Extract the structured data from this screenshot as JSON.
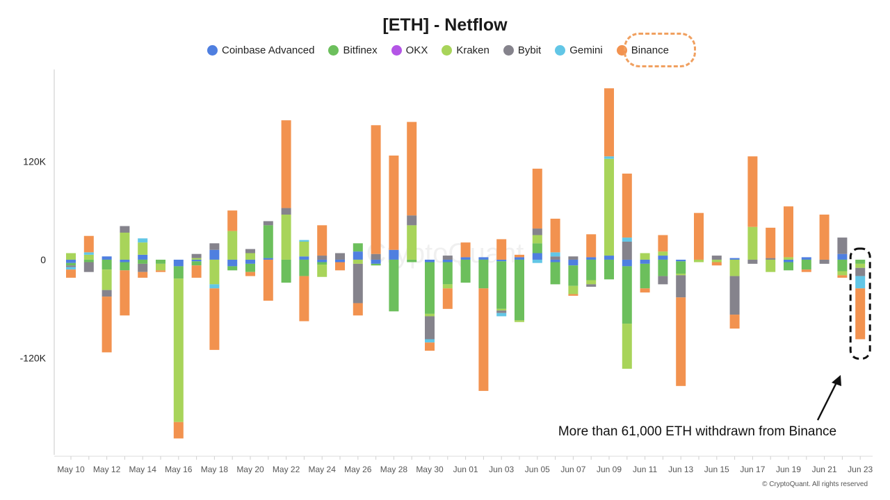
{
  "chart_data": {
    "type": "stacked-bar",
    "title": "[ETH] - Netflow",
    "xlabel": "",
    "ylabel": "",
    "ylim": [
      -238000,
      232000
    ],
    "yticks": [
      {
        "value": 120000,
        "label": "120K"
      },
      {
        "value": 0,
        "label": "0"
      },
      {
        "value": -120000,
        "label": "-120K"
      }
    ],
    "categories": [
      "May 10",
      "May 11",
      "May 12",
      "May 13",
      "May 14",
      "May 15",
      "May 16",
      "May 17",
      "May 18",
      "May 19",
      "May 20",
      "May 21",
      "May 22",
      "May 23",
      "May 24",
      "May 25",
      "May 26",
      "May 27",
      "May 28",
      "May 29",
      "May 30",
      "May 31",
      "Jun 01",
      "Jun 02",
      "Jun 03",
      "Jun 04",
      "Jun 05",
      "Jun 06",
      "Jun 07",
      "Jun 08",
      "Jun 09",
      "Jun 10",
      "Jun 11",
      "Jun 12",
      "Jun 13",
      "Jun 14",
      "Jun 15",
      "Jun 16",
      "Jun 17",
      "Jun 18",
      "Jun 19",
      "Jun 20",
      "Jun 21",
      "Jun 22",
      "Jun 23"
    ],
    "xtick_labels": [
      "May 10",
      "May 12",
      "May 14",
      "May 16",
      "May 18",
      "May 20",
      "May 22",
      "May 24",
      "May 26",
      "May 28",
      "May 30",
      "Jun 01",
      "Jun 03",
      "Jun 05",
      "Jun 07",
      "Jun 09",
      "Jun 11",
      "Jun 13",
      "Jun 15",
      "Jun 17",
      "Jun 19",
      "Jun 21",
      "Jun 23"
    ],
    "series": [
      {
        "name": "Coinbase Advanced",
        "color": "#4f7fe0",
        "values": [
          -4000,
          0,
          4000,
          -3000,
          6000,
          0,
          -8000,
          -2000,
          12000,
          -8000,
          -5000,
          2000,
          0,
          4000,
          -3000,
          -3000,
          10000,
          -5000,
          12000,
          0,
          -3000,
          -3000,
          3000,
          3000,
          -2000,
          3000,
          8000,
          -3000,
          -7000,
          3000,
          5000,
          -8000,
          -5000,
          5000,
          -2000,
          0,
          0,
          2000,
          0,
          0,
          -3000,
          3000,
          0,
          7000,
          0
        ]
      },
      {
        "name": "Bitfinex",
        "color": "#6cbf5c",
        "values": [
          -3000,
          -3000,
          -12000,
          -10000,
          -5000,
          -5000,
          -15000,
          -5000,
          0,
          -5000,
          -10000,
          40000,
          -28000,
          -20000,
          -3000,
          0,
          10000,
          -2000,
          -63000,
          -3000,
          -63000,
          -27000,
          -28000,
          -35000,
          -58000,
          -74000,
          12000,
          -27000,
          -25000,
          -25000,
          -24000,
          -70000,
          -30000,
          -20000,
          -15000,
          0,
          0,
          0,
          0,
          0,
          -10000,
          -12000,
          0,
          -14000,
          -5000
        ]
      },
      {
        "name": "OKX",
        "color": "#b455e6",
        "values": [
          0,
          0,
          0,
          0,
          0,
          0,
          0,
          0,
          0,
          0,
          0,
          0,
          0,
          0,
          0,
          0,
          0,
          0,
          0,
          0,
          0,
          0,
          0,
          0,
          0,
          0,
          0,
          0,
          0,
          0,
          0,
          0,
          0,
          0,
          0,
          0,
          0,
          0,
          0,
          0,
          0,
          0,
          0,
          0,
          0
        ]
      },
      {
        "name": "Kraken",
        "color": "#a8d45a",
        "values": [
          8000,
          6000,
          -25000,
          33000,
          15000,
          -8000,
          -175000,
          2000,
          -30000,
          35000,
          8000,
          0,
          55000,
          18000,
          -15000,
          0,
          -5000,
          0,
          0,
          42000,
          -3000,
          -5000,
          0,
          0,
          -2000,
          -2000,
          10000,
          0,
          -10000,
          -5000,
          118000,
          -55000,
          8000,
          5000,
          -2000,
          -3000,
          -3000,
          -20000,
          40000,
          -15000,
          3000,
          0,
          0,
          -5000,
          -5000
        ]
      },
      {
        "name": "Bybit",
        "color": "#85838c",
        "values": [
          -2000,
          -12000,
          -8000,
          8000,
          -10000,
          0,
          0,
          5000,
          8000,
          0,
          5000,
          5000,
          8000,
          0,
          5000,
          8000,
          -48000,
          7000,
          0,
          12000,
          -28000,
          5000,
          0,
          0,
          -3000,
          0,
          8000,
          4000,
          4000,
          -3000,
          0,
          22000,
          0,
          -10000,
          -27000,
          0,
          5000,
          -47000,
          -5000,
          2000,
          0,
          0,
          -5000,
          20000,
          -10000
        ]
      },
      {
        "name": "Gemini",
        "color": "#62c6e6",
        "values": [
          -3000,
          3000,
          0,
          0,
          5000,
          0,
          0,
          0,
          -5000,
          0,
          0,
          0,
          0,
          2000,
          0,
          0,
          0,
          0,
          0,
          0,
          -4000,
          0,
          0,
          0,
          -4000,
          0,
          -4000,
          5000,
          0,
          0,
          3000,
          5000,
          0,
          0,
          0,
          0,
          0,
          0,
          0,
          0,
          0,
          0,
          0,
          0,
          -15000
        ]
      },
      {
        "name": "Binance",
        "color": "#f2924f",
        "values": [
          -10000,
          20000,
          -68000,
          -55000,
          -7000,
          -2000,
          -20000,
          -15000,
          -75000,
          25000,
          -5000,
          -50000,
          107000,
          -55000,
          37000,
          -10000,
          -15000,
          157000,
          115000,
          114000,
          -10000,
          -25000,
          18000,
          -125000,
          25000,
          3000,
          73000,
          41000,
          -2000,
          28000,
          83000,
          78000,
          -5000,
          20000,
          -108000,
          57000,
          -4000,
          -17000,
          86000,
          37000,
          62000,
          -3000,
          55000,
          -3000,
          -62000
        ]
      }
    ],
    "annotations": [
      {
        "text": "More than 61,000 ETH withdrawn from Binance",
        "target": "Jun 23"
      }
    ],
    "legend_position": "top",
    "grid": false,
    "watermark": "CryptoQuant"
  },
  "copyright": "© CryptoQuant. All rights reserved"
}
